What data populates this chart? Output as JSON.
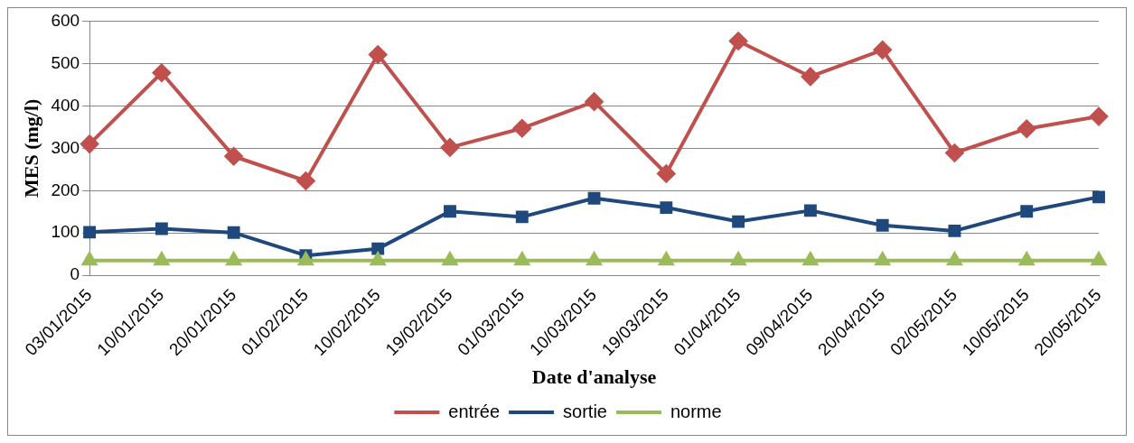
{
  "chart_data": {
    "type": "line",
    "xlabel": "Date d'analyse",
    "ylabel": "MES (mg/l)",
    "categories": [
      "03/01/2015",
      "10/01/2015",
      "20/01/2015",
      "01/02/2015",
      "10/02/2015",
      "19/02/2015",
      "01/03/2015",
      "10/03/2015",
      "19/03/2015",
      "01/04/2015",
      "09/04/2015",
      "20/04/2015",
      "02/05/2015",
      "10/05/2015",
      "20/05/2015"
    ],
    "series": [
      {
        "name": "entrée",
        "color": "#c0504d",
        "marker": "diamond",
        "values": [
          310,
          478,
          281,
          223,
          521,
          302,
          347,
          410,
          240,
          553,
          469,
          532,
          289,
          346,
          375
        ]
      },
      {
        "name": "sortie",
        "color": "#1f497d",
        "marker": "square",
        "values": [
          102,
          110,
          101,
          47,
          63,
          151,
          138,
          182,
          160,
          127,
          153,
          118,
          105,
          151,
          185
        ]
      },
      {
        "name": "norme",
        "color": "#9bbb59",
        "marker": "triangle",
        "values": [
          35,
          35,
          35,
          35,
          35,
          35,
          35,
          35,
          35,
          35,
          35,
          35,
          35,
          35,
          35
        ]
      }
    ],
    "ylim": [
      0,
      600
    ],
    "yticks": [
      0,
      100,
      200,
      300,
      400,
      500,
      600
    ],
    "grid": "y",
    "legend": "bottom",
    "line_style": "solid"
  }
}
